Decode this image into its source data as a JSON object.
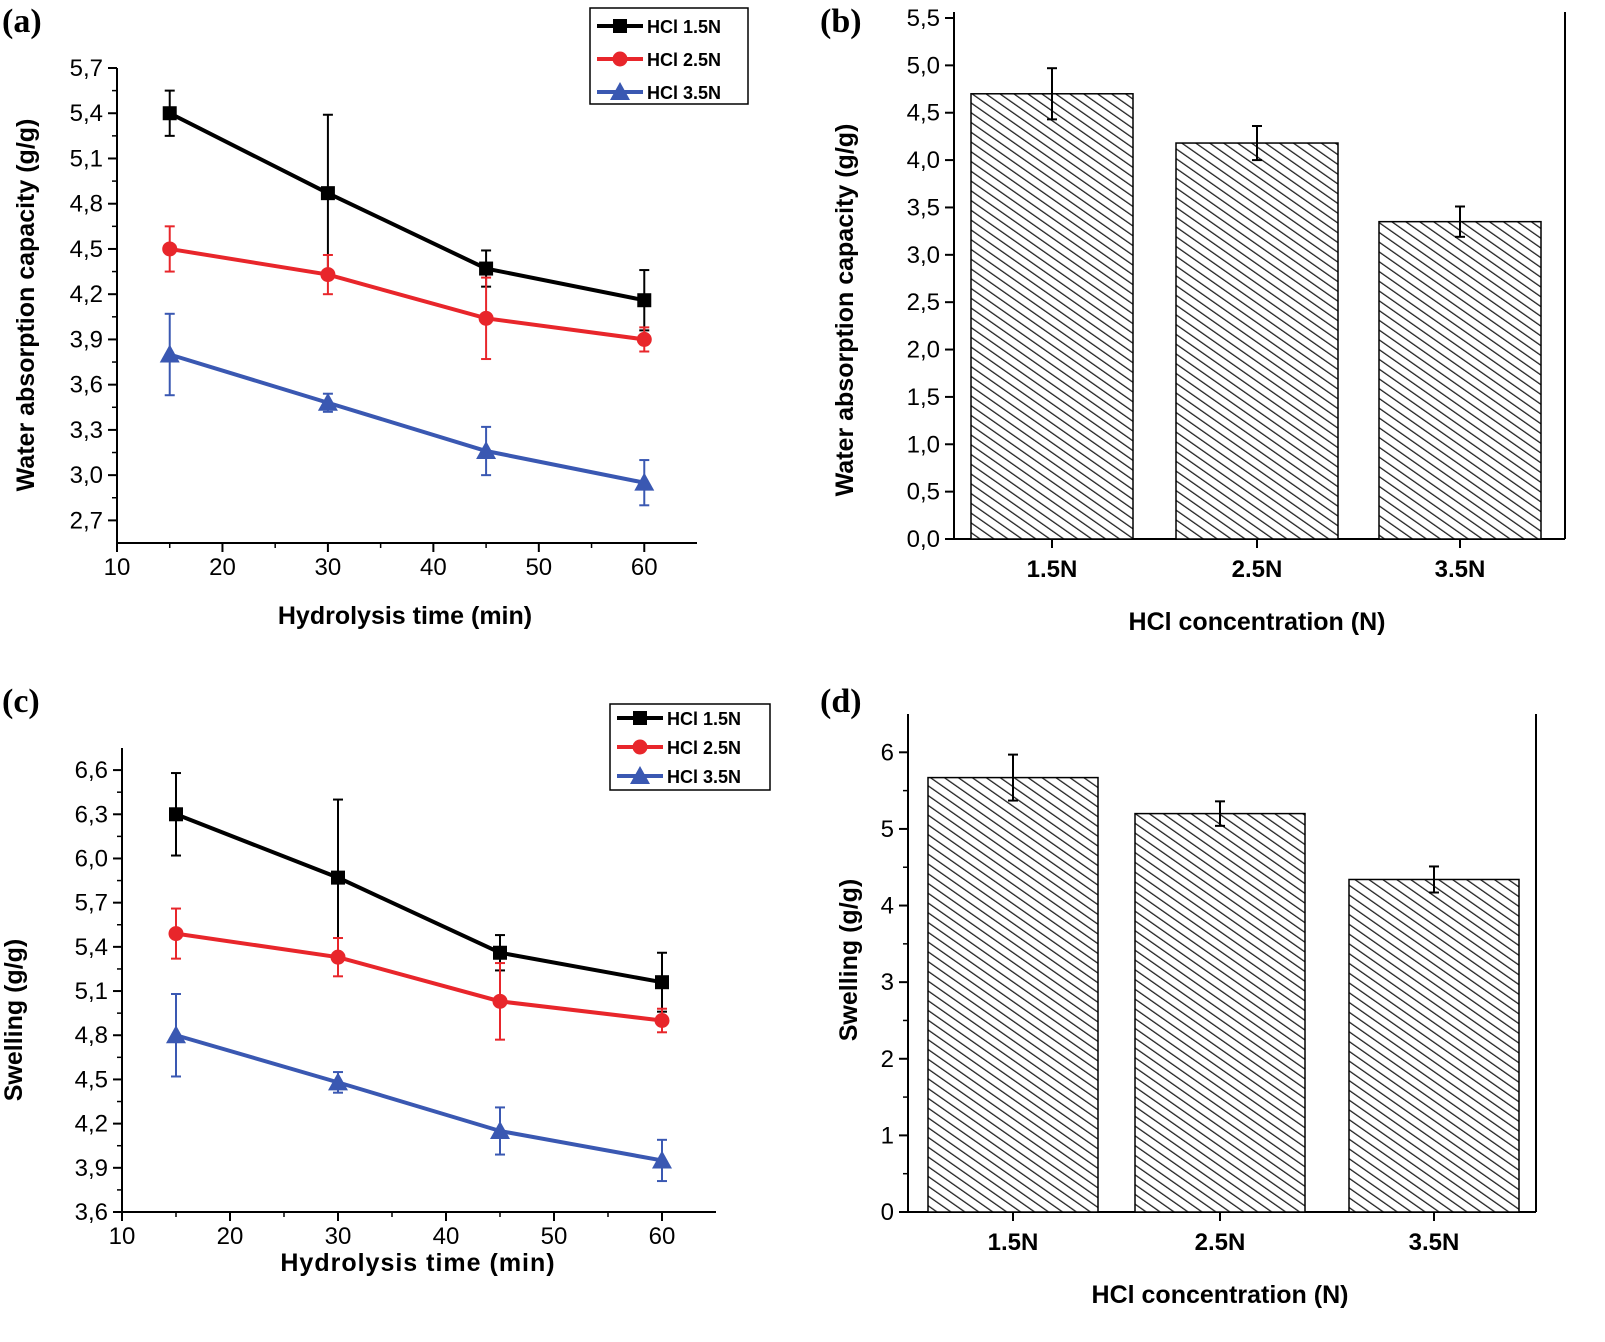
{
  "chart_data": [
    {
      "panel": "(a)",
      "type": "line",
      "xlabel": "Hydrolysis time (min)",
      "ylabel": "Water absorption capacity (g/g)",
      "xlim": [
        10,
        65
      ],
      "ylim": [
        2.55,
        5.7
      ],
      "xticks": [
        10,
        20,
        30,
        40,
        50,
        60
      ],
      "xtick_labels": [
        "10",
        "20",
        "30",
        "40",
        "50",
        "60"
      ],
      "yticks": [
        2.7,
        3.0,
        3.3,
        3.6,
        3.9,
        4.2,
        4.5,
        4.8,
        5.1,
        5.4,
        5.7
      ],
      "ytick_labels": [
        "2,7",
        "3,0",
        "3,3",
        "3,6",
        "3,9",
        "4,2",
        "4,5",
        "4,8",
        "5,1",
        "5,4",
        "5,7"
      ],
      "legend_position": "top-right",
      "x": [
        15,
        30,
        45,
        60
      ],
      "series": [
        {
          "name": "HCl 1.5N",
          "legend_label": "HCl 1.5N",
          "color": "#000000",
          "marker": "square",
          "values": [
            5.4,
            4.87,
            4.37,
            4.16
          ],
          "errors": [
            0.15,
            0.52,
            0.12,
            0.2
          ]
        },
        {
          "name": "HCl 2.5N",
          "legend_label": "HCl  2.5N",
          "color": "#e8262b",
          "marker": "circle",
          "values": [
            4.5,
            4.33,
            4.04,
            3.9
          ],
          "errors": [
            0.15,
            0.13,
            0.27,
            0.08
          ]
        },
        {
          "name": "HCl 3.5N",
          "legend_label": "HCl  3.5N",
          "color": "#3a58b2",
          "marker": "triangle",
          "values": [
            3.8,
            3.48,
            3.16,
            2.95
          ],
          "errors": [
            0.27,
            0.06,
            0.16,
            0.15
          ]
        }
      ]
    },
    {
      "panel": "(b)",
      "type": "bar",
      "xlabel": "HCl concentration (N)",
      "ylabel": "Water absorption capacity (g/g)",
      "categories": [
        "1.5N",
        "2.5N",
        "3.5N"
      ],
      "values": [
        4.7,
        4.18,
        3.35
      ],
      "errors": [
        0.27,
        0.18,
        0.16
      ],
      "ylim": [
        0,
        5.5
      ],
      "yticks": [
        0,
        0.5,
        1.0,
        1.5,
        2.0,
        2.5,
        3.0,
        3.5,
        4.0,
        4.5,
        5.0,
        5.5
      ],
      "ytick_labels": [
        "0,0",
        "0,5",
        "1,0",
        "1,5",
        "2,0",
        "2,5",
        "3,0",
        "3,5",
        "4,0",
        "4,5",
        "5,0",
        "5,5"
      ],
      "fill": "diagonal hatch"
    },
    {
      "panel": "(c)",
      "type": "line",
      "xlabel": "Hydrolysis time (min)",
      "ylabel": "Swelling (g/g)",
      "xlim": [
        10,
        65
      ],
      "ylim": [
        3.6,
        6.75
      ],
      "xticks": [
        10,
        20,
        30,
        40,
        50,
        60
      ],
      "xtick_labels": [
        "10",
        "20",
        "30",
        "40",
        "50",
        "60"
      ],
      "yticks": [
        3.6,
        3.9,
        4.2,
        4.5,
        4.8,
        5.1,
        5.4,
        5.7,
        6.0,
        6.3,
        6.6
      ],
      "ytick_labels": [
        "3,6",
        "3,9",
        "4,2",
        "4,5",
        "4,8",
        "5,1",
        "5,4",
        "5,7",
        "6,0",
        "6,3",
        "6,6"
      ],
      "legend_position": "top-right",
      "x": [
        15,
        30,
        45,
        60
      ],
      "series": [
        {
          "name": "HCl 1.5N",
          "legend_label": "HCl 1.5N",
          "color": "#000000",
          "marker": "square",
          "values": [
            6.3,
            5.87,
            5.36,
            5.16
          ],
          "errors": [
            0.28,
            0.53,
            0.12,
            0.2
          ]
        },
        {
          "name": "HCl 2.5N",
          "legend_label": "HCl 2.5N",
          "color": "#e8262b",
          "marker": "circle",
          "values": [
            5.49,
            5.33,
            5.03,
            4.9
          ],
          "errors": [
            0.17,
            0.13,
            0.26,
            0.08
          ]
        },
        {
          "name": "HCl 3.5N",
          "legend_label": "HCl 3.5N",
          "color": "#3a58b2",
          "marker": "triangle",
          "values": [
            4.8,
            4.48,
            4.15,
            3.95
          ],
          "errors": [
            0.28,
            0.07,
            0.16,
            0.14
          ]
        }
      ]
    },
    {
      "panel": "(d)",
      "type": "bar",
      "xlabel": "HCl concentration (N)",
      "ylabel": "Swelling (g/g)",
      "categories": [
        "1.5N",
        "2.5N",
        "3.5N"
      ],
      "values": [
        5.67,
        5.2,
        4.34
      ],
      "errors": [
        0.3,
        0.16,
        0.17
      ],
      "ylim": [
        0,
        6.5
      ],
      "yticks": [
        0,
        1,
        2,
        3,
        4,
        5,
        6
      ],
      "ytick_labels": [
        "0",
        "1",
        "2",
        "3",
        "4",
        "5",
        "6"
      ],
      "fill": "diagonal hatch"
    }
  ]
}
